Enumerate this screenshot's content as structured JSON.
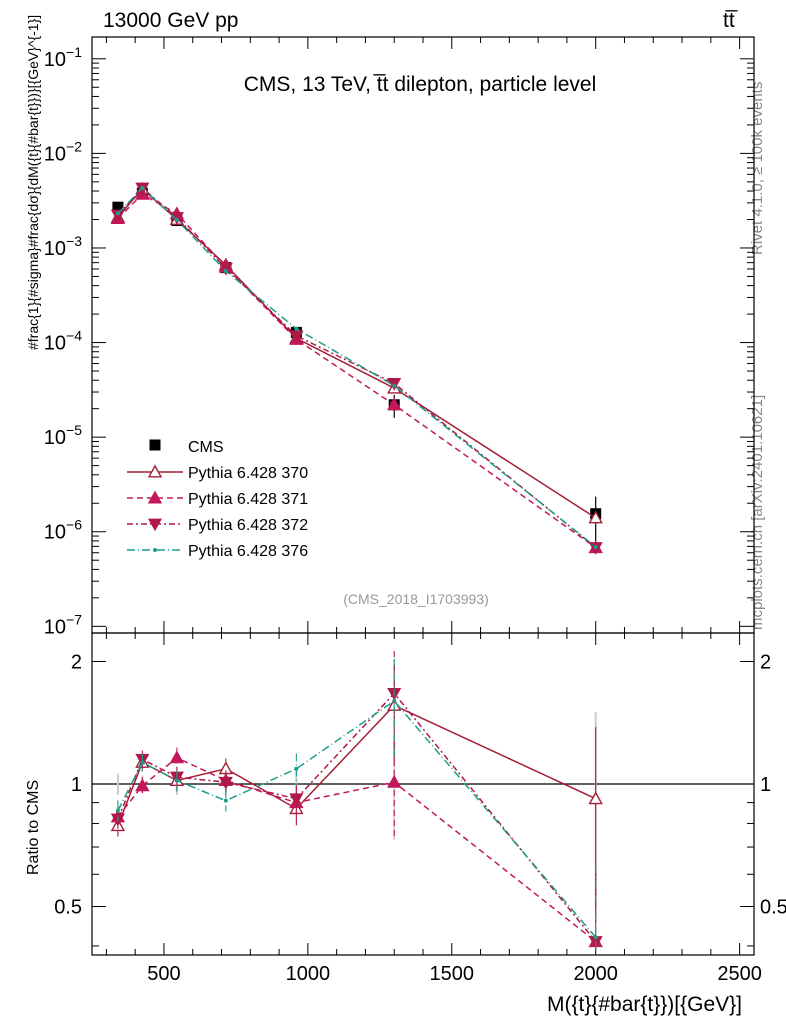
{
  "header": {
    "left": "13000 GeV pp",
    "right": "tt̅"
  },
  "side_text": {
    "rivet": "Rivet 4.1.0, ≥ 100k events",
    "mcplots": "mcplots.cern.ch [arXiv:2401.10621]"
  },
  "watermark": "(CMS_2018_I1703993)",
  "chart_data": {
    "type": "line",
    "title": "CMS, 13 TeV, t̅t dilepton, particle level",
    "ylabel": "#frac{1}{#sigma}#frac{dσ}{dM({t}{#bar{t}})}[{GeV}^{-1}]",
    "xlabel": "M({t}{#bar{t}})[{GeV}]",
    "ratio_ylabel": "Ratio to CMS",
    "xlim": [
      250,
      2550
    ],
    "ylim": [
      8.5e-08,
      0.17
    ],
    "ratio_ylim": [
      0.38,
      2.35
    ],
    "x_ticks": [
      500,
      1000,
      1500,
      2000,
      2500
    ],
    "y_ticks": [
      {
        "value": 1e-07,
        "label": "10",
        "exp": "−7"
      },
      {
        "value": 1e-06,
        "label": "10",
        "exp": "−6"
      },
      {
        "value": 1e-05,
        "label": "10",
        "exp": "−5"
      },
      {
        "value": 0.0001,
        "label": "10",
        "exp": "−4"
      },
      {
        "value": 0.001,
        "label": "10",
        "exp": "−3"
      },
      {
        "value": 0.01,
        "label": "10",
        "exp": "−2"
      },
      {
        "value": 0.1,
        "label": "10",
        "exp": "−1"
      }
    ],
    "ratio_ticks": [
      {
        "value": 0.5,
        "label": "0.5"
      },
      {
        "value": 1,
        "label": "1"
      },
      {
        "value": 2,
        "label": "2"
      }
    ],
    "x": [
      340,
      425,
      545,
      715,
      960,
      1300,
      2000
    ],
    "data": {
      "name": "CMS",
      "values": [
        0.0027,
        0.0038,
        0.00195,
        0.00062,
        0.000128,
        2.2e-05,
        1.55e-06
      ],
      "err_up": [
        0.00018,
        0.0002,
        0.00012,
        4e-05,
        1.2e-05,
        6e-06,
        8e-07
      ],
      "err_down": [
        0.00018,
        0.0002,
        0.00012,
        4e-05,
        1.2e-05,
        6e-06,
        8e-07
      ],
      "ratio_band": [
        0.06,
        0.05,
        0.06,
        0.06,
        0.09,
        0.27,
        0.5
      ]
    },
    "series": [
      {
        "name": "Pythia 6.428 370",
        "color": "#a31f34",
        "marker": "triangle-up-open",
        "dash": "",
        "values": [
          0.00212,
          0.0042,
          0.002,
          0.00066,
          0.000111,
          3.3e-05,
          1.4e-06
        ],
        "ratio": [
          0.79,
          1.13,
          1.02,
          1.09,
          0.87,
          1.56,
          0.92
        ]
      },
      {
        "name": "Pythia 6.428 371",
        "color": "#c2185b",
        "marker": "triangle-up",
        "dash": "6,4",
        "values": [
          0.00205,
          0.0037,
          0.0023,
          0.00063,
          0.000108,
          2.2e-05,
          6.8e-07
        ],
        "ratio": [
          0.83,
          0.99,
          1.16,
          1.02,
          0.9,
          1.01,
          0.41
        ]
      },
      {
        "name": "Pythia 6.428 372",
        "color": "#b0184a",
        "marker": "triangle-down",
        "dash": "6,3,2,3",
        "values": [
          0.00222,
          0.0043,
          0.0021,
          0.00061,
          0.000118,
          3.7e-05,
          6.8e-07
        ],
        "ratio": [
          0.82,
          1.15,
          1.04,
          1.01,
          0.92,
          1.67,
          0.41
        ]
      },
      {
        "name": "Pythia 6.428 376",
        "color": "#1a9e8c",
        "marker": "dot",
        "dash": "8,3,1,3",
        "values": [
          0.00232,
          0.0043,
          0.00198,
          0.00057,
          0.00014,
          3.5e-05,
          6.9e-07
        ],
        "ratio": [
          0.86,
          1.13,
          1.02,
          0.91,
          1.09,
          1.6,
          0.42
        ]
      }
    ]
  }
}
